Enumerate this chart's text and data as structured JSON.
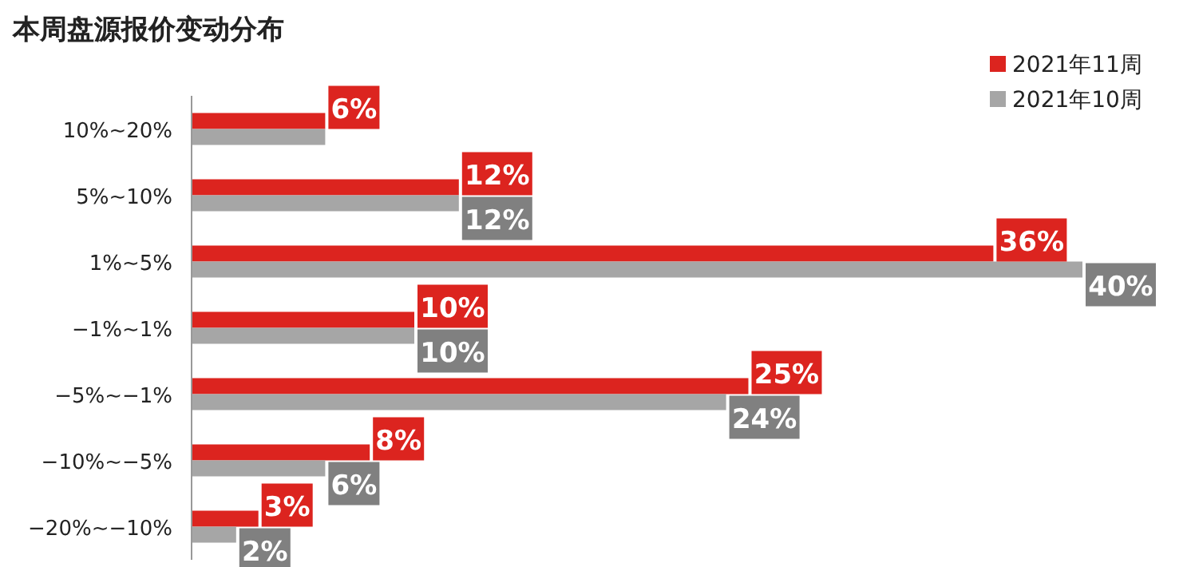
{
  "chart_data": {
    "type": "bar",
    "orientation": "horizontal",
    "title": "本周盘源报价变动分布",
    "categories": [
      "10%~20%",
      "5%~10%",
      "1%~5%",
      "−1%~1%",
      "−5%~−1%",
      "−10%~−5%",
      "−20%~−10%"
    ],
    "series": [
      {
        "name": "2021年11周",
        "color": "#dc241f",
        "values": [
          6,
          12,
          36,
          10,
          25,
          8,
          3
        ],
        "value_labels": [
          "6%",
          "12%",
          "36%",
          "10%",
          "25%",
          "8%",
          "3%"
        ]
      },
      {
        "name": "2021年10周",
        "color": "#a6a6a6",
        "values": [
          6,
          12,
          40,
          10,
          24,
          6,
          2
        ],
        "value_labels": [
          null,
          "12%",
          "40%",
          "10%",
          "24%",
          "6%",
          "2%"
        ]
      }
    ],
    "legend": "top right"
  }
}
